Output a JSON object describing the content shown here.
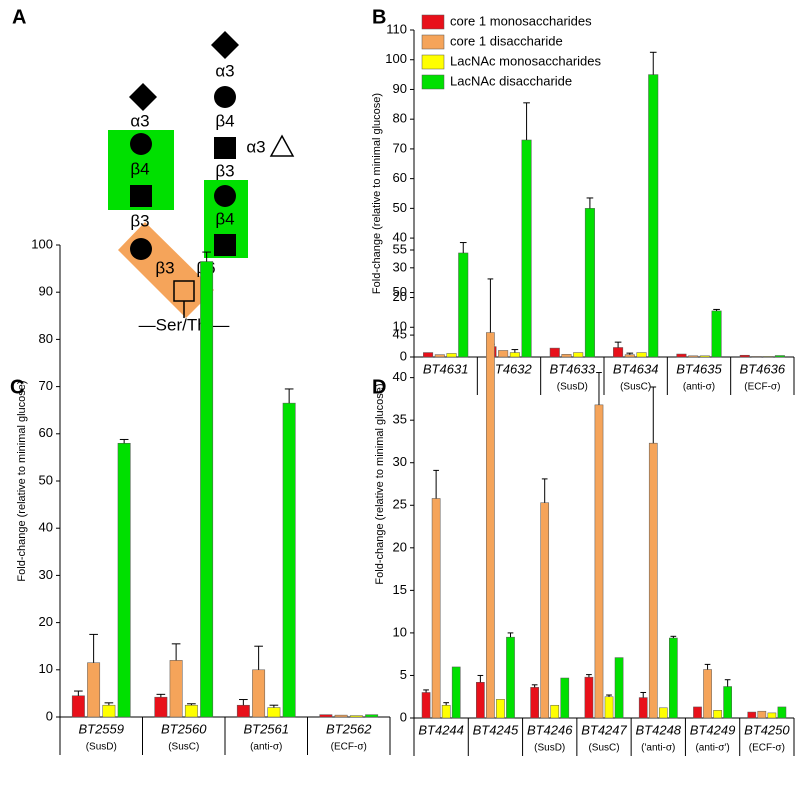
{
  "diagram": {
    "panel": "A",
    "labels": [
      "α3",
      "β4",
      "β3",
      "β3",
      "β6",
      "α3",
      "β4",
      "α3",
      "β3",
      "β4"
    ],
    "base": "—Ser/Thr—"
  },
  "chart_data": [
    {
      "type": "bar",
      "panel": "B",
      "ylabel": "Fold-change (relative to minimal glucose)",
      "ylim": [
        0,
        110
      ],
      "yticks": [
        0,
        10,
        20,
        30,
        40,
        50,
        60,
        70,
        80,
        90,
        100,
        110
      ],
      "legend": "upper-left",
      "categories": [
        "BT4631",
        "BT4632",
        "BT4633",
        "BT4634",
        "BT4635",
        "BT4636"
      ],
      "category_notes": [
        null,
        null,
        "(SusD)",
        "(SusC)",
        "(anti-σ)",
        "(ECF-σ)"
      ],
      "series": [
        {
          "name": "core 1 monosaccharides",
          "color": "#e8101a",
          "values": [
            1.5,
            3.5,
            3.0,
            3.2,
            1.0,
            0.6
          ],
          "errors": [
            null,
            0.8,
            null,
            1.8,
            null,
            null
          ]
        },
        {
          "name": "core 1 disaccharide",
          "color": "#f5a45a",
          "values": [
            0.8,
            2.2,
            0.9,
            0.8,
            0.4,
            0.2
          ],
          "errors": [
            null,
            null,
            null,
            0.5,
            null,
            null
          ]
        },
        {
          "name": "LacNAc monosaccharides",
          "color": "#ffff00",
          "values": [
            1.2,
            1.5,
            1.5,
            1.5,
            0.4,
            0.2
          ],
          "errors": [
            null,
            1.0,
            null,
            null,
            null,
            null
          ]
        },
        {
          "name": "LacNAc disaccharide",
          "color": "#00e000",
          "values": [
            35,
            73,
            50,
            95,
            15.5,
            0.5
          ],
          "errors": [
            3.5,
            12.5,
            3.5,
            7.5,
            0.5,
            null
          ]
        }
      ]
    },
    {
      "type": "bar",
      "panel": "C",
      "ylabel": "Fold-change (relative to minimal glucose)",
      "ylim": [
        0,
        100
      ],
      "yticks": [
        0,
        10,
        20,
        30,
        40,
        50,
        60,
        70,
        80,
        90,
        100
      ],
      "categories": [
        "BT2559",
        "BT2560",
        "BT2561",
        "BT2562"
      ],
      "category_notes": [
        "(SusD)",
        "(SusC)",
        "(anti-σ)",
        "(ECF-σ)"
      ],
      "series": [
        {
          "color": "#e8101a",
          "values": [
            4.5,
            4.2,
            2.5,
            0.5
          ],
          "errors": [
            1.0,
            0.6,
            1.2,
            null
          ]
        },
        {
          "color": "#f5a45a",
          "values": [
            11.5,
            12,
            10,
            0.4
          ],
          "errors": [
            6,
            3.5,
            5,
            null
          ]
        },
        {
          "color": "#ffff00",
          "values": [
            2.5,
            2.5,
            2,
            0.3
          ],
          "errors": [
            0.5,
            0.3,
            0.5,
            null
          ]
        },
        {
          "color": "#00e000",
          "values": [
            58,
            96.5,
            66.5,
            0.5
          ],
          "errors": [
            0.8,
            2,
            3,
            null
          ]
        }
      ]
    },
    {
      "type": "bar",
      "panel": "D",
      "ylabel": "Fold-change (relative to minimal glucose)",
      "ylim": [
        0,
        55
      ],
      "yticks": [
        0,
        5,
        10,
        15,
        20,
        25,
        30,
        35,
        40,
        45,
        50,
        55
      ],
      "categories": [
        "BT4244",
        "BT4245",
        "BT4246",
        "BT4247",
        "BT4248",
        "BT4249",
        "BT4250"
      ],
      "category_notes": [
        null,
        null,
        "(SusD)",
        "(SusC)",
        "('anti-σ)",
        "(anti-σ')",
        "(ECF-σ)"
      ],
      "series": [
        {
          "color": "#e8101a",
          "values": [
            3,
            4.2,
            3.6,
            4.8,
            2.4,
            1.3,
            0.7
          ],
          "errors": [
            0.3,
            0.8,
            0.3,
            0.3,
            0.6,
            null,
            null
          ]
        },
        {
          "color": "#f5a45a",
          "values": [
            25.8,
            45.3,
            25.3,
            36.8,
            32.3,
            5.7,
            0.8
          ],
          "errors": [
            3.3,
            6.3,
            2.8,
            3.8,
            6.6,
            0.6,
            null
          ]
        },
        {
          "color": "#ffff00",
          "values": [
            1.5,
            2.2,
            1.5,
            2.5,
            1.2,
            0.9,
            0.6
          ],
          "errors": [
            0.3,
            null,
            null,
            0.2,
            null,
            null,
            null
          ]
        },
        {
          "color": "#00e000",
          "values": [
            6,
            9.5,
            4.7,
            7.1,
            9.4,
            3.7,
            1.3
          ],
          "errors": [
            null,
            0.5,
            null,
            null,
            0.2,
            0.8,
            null
          ]
        }
      ]
    }
  ]
}
